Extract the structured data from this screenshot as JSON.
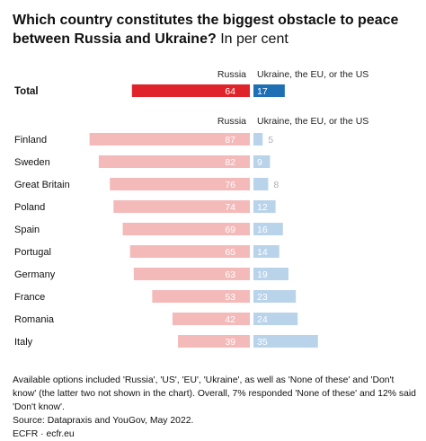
{
  "title": {
    "main": "Which country constitutes the biggest obstacle to peace between Russia and Ukraine?",
    "sub": "In per cent"
  },
  "chart_data": {
    "type": "bar",
    "subtype": "diverging horizontal bar",
    "series": [
      {
        "name": "Russia",
        "color": "#e0232a",
        "color_light": "#f4b9b9"
      },
      {
        "name": "Ukraine, the EU, or the US",
        "color": "#1f6fb5",
        "color_light": "#b9d3ea"
      }
    ],
    "total": {
      "label": "Total",
      "values": [
        64,
        17
      ]
    },
    "categories": [
      "Finland",
      "Sweden",
      "Great Britain",
      "Poland",
      "Spain",
      "Portugal",
      "Germany",
      "France",
      "Romania",
      "Italy"
    ],
    "russia": [
      87,
      82,
      76,
      74,
      69,
      65,
      63,
      53,
      42,
      39
    ],
    "ukraine_eu_us": [
      5,
      9,
      8,
      12,
      16,
      14,
      19,
      23,
      24,
      35
    ]
  },
  "footer": {
    "note": "Available options included 'Russia', 'US', 'EU', 'Ukraine', as well as 'None of these' and 'Don't know' (the latter two not shown in the chart). Overall, 7% responded 'None of these' and 12% said 'Don't know'.",
    "source": "Source: Datapraxis and YouGov, May 2022.",
    "credit": "ECFR · ecfr.eu"
  }
}
